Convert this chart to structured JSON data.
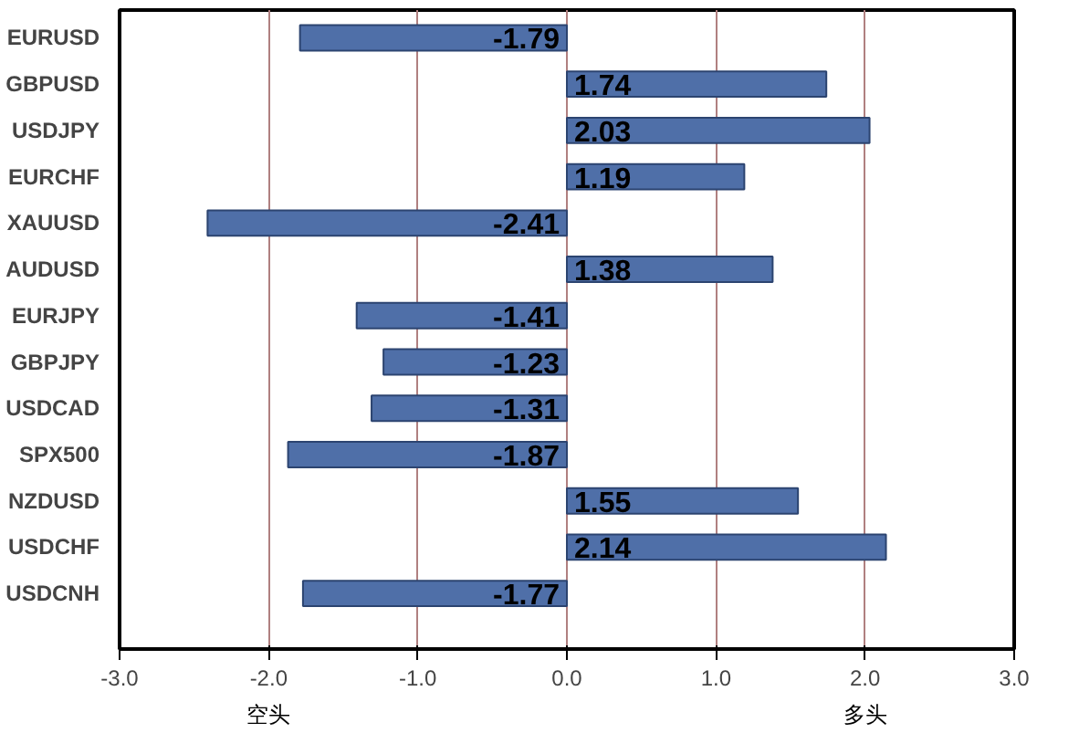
{
  "chart_data": {
    "type": "bar",
    "orientation": "horizontal",
    "categories": [
      "EURUSD",
      "GBPUSD",
      "USDJPY",
      "EURCHF",
      "XAUUSD",
      "AUDUSD",
      "EURJPY",
      "GBPJPY",
      "USDCAD",
      "SPX500",
      "NZDUSD",
      "USDCHF",
      "USDCNH"
    ],
    "values": [
      -1.79,
      1.74,
      2.03,
      1.19,
      -2.41,
      1.38,
      -1.41,
      -1.23,
      -1.31,
      -1.87,
      1.55,
      2.14,
      -1.77
    ],
    "color": "#4f6fa8",
    "xlim": [
      -3.0,
      3.0
    ],
    "xticks": [
      {
        "value": -3,
        "label": "-3.0"
      },
      {
        "value": -2,
        "label": "-2.0"
      },
      {
        "value": -1,
        "label": "-1.0"
      },
      {
        "value": 0,
        "label": "0.0"
      },
      {
        "value": 1,
        "label": "1.0"
      },
      {
        "value": 2,
        "label": "2.0"
      },
      {
        "value": 3,
        "label": "3.0"
      }
    ],
    "grid": "x",
    "data_labels": true,
    "annotations": [
      "空头",
      "多头"
    ]
  }
}
